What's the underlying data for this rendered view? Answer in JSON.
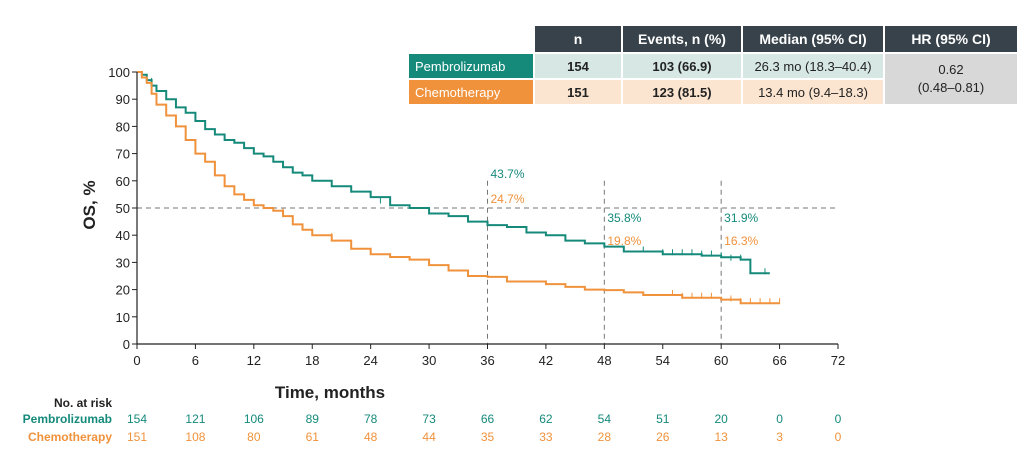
{
  "colors": {
    "pembrolizumab": "#158a7b",
    "chemotherapy": "#f0923c",
    "header": "#37424a",
    "reference": "#777777"
  },
  "table": {
    "headers": [
      "n",
      "Events, n (%)",
      "Median (95% CI)",
      "HR (95% CI)"
    ],
    "rows": [
      {
        "arm": "Pembrolizumab",
        "n": "154",
        "events": "103 (66.9)",
        "median": "26.3 mo (18.3–40.4)"
      },
      {
        "arm": "Chemotherapy",
        "n": "151",
        "events": "123 (81.5)",
        "median": "13.4 mo (9.4–18.3)"
      }
    ],
    "hr_value": "0.62",
    "hr_ci": "(0.48–0.81)"
  },
  "chart_data": {
    "type": "line",
    "xlabel": "Time, months",
    "ylabel": "OS, %",
    "xlim": [
      0,
      72
    ],
    "ylim": [
      0,
      100
    ],
    "xticks": [
      0,
      6,
      12,
      18,
      24,
      30,
      36,
      42,
      48,
      54,
      60,
      66,
      72
    ],
    "yticks": [
      0,
      10,
      20,
      30,
      40,
      50,
      60,
      70,
      80,
      90,
      100
    ],
    "reference_lines": {
      "horizontal": [
        50
      ],
      "vertical": [
        36,
        48,
        60
      ]
    },
    "series": [
      {
        "name": "Pembrolizumab",
        "color": "#158a7b",
        "x": [
          0,
          0.5,
          1,
          1.5,
          2,
          3,
          4,
          5,
          6,
          7,
          8,
          9,
          10,
          11,
          12,
          13,
          14,
          15,
          16,
          17,
          18,
          20,
          22,
          24,
          26,
          28,
          30,
          32,
          34,
          36,
          38,
          40,
          42,
          44,
          46,
          48,
          50,
          52,
          54,
          56,
          58,
          60,
          62,
          63,
          65
        ],
        "y": [
          100,
          99,
          97,
          95,
          93,
          90,
          87,
          85,
          82,
          79,
          77,
          75,
          74,
          72,
          70,
          69,
          67,
          65,
          63,
          62,
          60,
          58,
          56,
          54,
          51,
          50,
          48,
          47,
          45,
          43.7,
          43,
          41,
          40,
          38,
          37,
          35.8,
          34,
          34,
          33,
          33,
          32.5,
          31.9,
          31,
          26,
          26
        ],
        "censor_x": [
          1.5,
          22,
          25,
          52,
          54,
          55,
          56,
          57,
          58,
          59,
          60,
          61,
          62,
          64.5
        ],
        "censor_y": [
          96,
          56,
          52,
          34,
          33,
          33,
          33,
          33,
          32.5,
          32.5,
          31.9,
          31,
          31,
          26
        ]
      },
      {
        "name": "Chemotherapy",
        "color": "#f0923c",
        "x": [
          0,
          0.5,
          1,
          1.5,
          2,
          3,
          4,
          5,
          6,
          7,
          8,
          9,
          10,
          11,
          12,
          13,
          14,
          15,
          16,
          17,
          18,
          20,
          22,
          24,
          26,
          28,
          30,
          32,
          34,
          36,
          38,
          40,
          42,
          44,
          46,
          48,
          50,
          52,
          54,
          56,
          58,
          60,
          62,
          66
        ],
        "y": [
          100,
          98,
          96,
          92,
          88,
          84,
          80,
          75,
          70,
          67,
          62,
          58,
          55,
          53,
          51,
          50,
          49,
          47,
          44,
          42,
          40,
          38,
          35,
          33,
          32,
          31,
          29,
          27,
          25,
          24.7,
          23,
          23,
          22,
          21,
          20,
          19.8,
          19,
          18,
          18,
          17,
          17,
          16.3,
          15,
          15
        ],
        "censor_x": [
          15,
          20,
          22,
          55,
          56,
          57,
          58,
          59,
          61,
          62,
          63,
          64,
          65,
          66
        ],
        "censor_y": [
          48,
          39,
          36,
          18,
          17,
          17,
          17,
          17,
          16,
          15,
          15,
          15,
          15,
          15
        ]
      }
    ],
    "landmarks": [
      {
        "x": 36,
        "values": [
          "43.7%",
          "24.7%"
        ]
      },
      {
        "x": 48,
        "values": [
          "35.8%",
          "19.8%"
        ]
      },
      {
        "x": 60,
        "values": [
          "31.9%",
          "16.3%"
        ]
      }
    ],
    "risk_table": {
      "title": "No. at risk",
      "times": [
        0,
        6,
        12,
        18,
        24,
        30,
        36,
        42,
        48,
        54,
        60,
        66,
        72
      ],
      "rows": [
        {
          "name": "Pembrolizumab",
          "values": [
            "154",
            "121",
            "106",
            "89",
            "78",
            "73",
            "66",
            "62",
            "54",
            "51",
            "20",
            "0",
            "0"
          ]
        },
        {
          "name": "Chemotherapy",
          "values": [
            "151",
            "108",
            "80",
            "61",
            "48",
            "44",
            "35",
            "33",
            "28",
            "26",
            "13",
            "3",
            "0"
          ]
        }
      ]
    }
  }
}
